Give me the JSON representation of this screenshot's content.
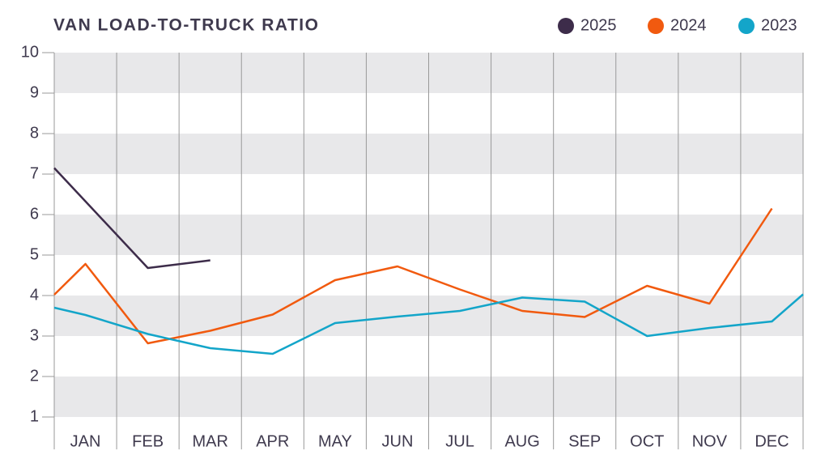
{
  "chart_data": {
    "type": "line",
    "title": "VAN LOAD-TO-TRUCK RATIO",
    "categories": [
      "JAN",
      "FEB",
      "MAR",
      "APR",
      "MAY",
      "JUN",
      "JUL",
      "AUG",
      "SEP",
      "OCT",
      "NOV",
      "DEC"
    ],
    "xlim": [
      0,
      12
    ],
    "ylim": [
      1,
      10
    ],
    "yticks": [
      1,
      2,
      3,
      4,
      5,
      6,
      7,
      8,
      9,
      10
    ],
    "grid": true,
    "legend": "top-right",
    "series": [
      {
        "name": "2025",
        "color": "#3d2c4a",
        "x": [
          0,
          1.5,
          2.5
        ],
        "values": [
          7.15,
          4.68,
          4.87
        ]
      },
      {
        "name": "2024",
        "color": "#f15a0f",
        "x": [
          0,
          0.5,
          1.5,
          2.5,
          3.5,
          4.5,
          5.5,
          6.5,
          7.5,
          8.5,
          9.5,
          10.5,
          11.5
        ],
        "values": [
          4.02,
          4.78,
          2.82,
          3.13,
          3.53,
          4.38,
          4.72,
          4.15,
          3.62,
          3.47,
          4.24,
          3.8,
          6.15
        ]
      },
      {
        "name": "2023",
        "color": "#13a5c9",
        "x": [
          0,
          0.5,
          1.5,
          2.5,
          3.5,
          4.5,
          5.5,
          6.5,
          7.5,
          8.5,
          9.5,
          10.5,
          11.5,
          12
        ],
        "values": [
          3.7,
          3.52,
          3.05,
          2.7,
          2.56,
          3.32,
          3.48,
          3.62,
          3.95,
          3.85,
          3.0,
          3.2,
          3.36,
          4.03
        ]
      }
    ]
  }
}
